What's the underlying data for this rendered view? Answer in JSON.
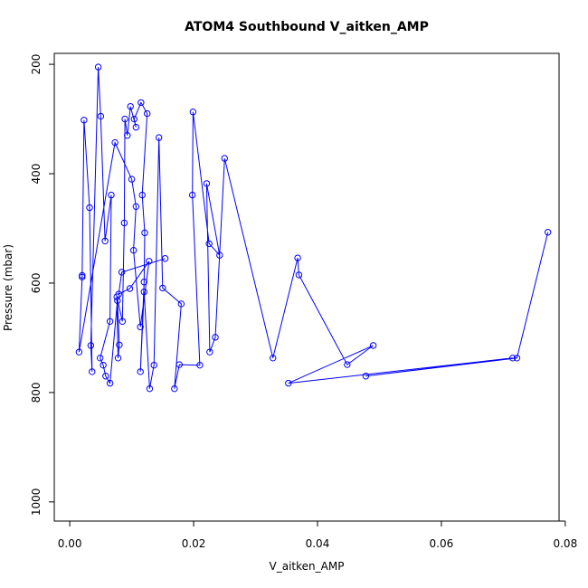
{
  "chart_data": {
    "type": "line",
    "title": "ATOM4 Southbound V_aitken_AMP",
    "xlabel": "V_aitken_AMP",
    "ylabel": "Pressure (mbar)",
    "xlim": [
      -0.0025,
      0.079
    ],
    "ylim": [
      1035,
      180
    ],
    "y_inverted": true,
    "x_ticks": [
      "0.00",
      "0.02",
      "0.04",
      "0.06",
      "0.08"
    ],
    "x_tick_values": [
      0.0,
      0.02,
      0.04,
      0.06,
      0.08
    ],
    "y_ticks": [
      "200",
      "400",
      "600",
      "800",
      "1000"
    ],
    "y_tick_values": [
      200,
      400,
      600,
      800,
      1000
    ],
    "series_color": "#0000ff",
    "marker": "open-circle",
    "series": [
      {
        "points": [
          [
            0.0772,
            507
          ],
          [
            0.0722,
            737
          ],
          [
            0.0478,
            770
          ],
          [
            0.0715,
            737
          ],
          [
            0.0353,
            783
          ],
          [
            0.049,
            714
          ],
          [
            0.0448,
            749
          ],
          [
            0.037,
            585
          ],
          [
            0.0368,
            554
          ],
          [
            0.0328,
            737
          ],
          [
            0.025,
            372
          ],
          [
            0.0235,
            699
          ],
          [
            0.0226,
            726
          ],
          [
            0.0221,
            418
          ],
          [
            0.0242,
            549
          ],
          [
            0.0225,
            528
          ],
          [
            0.0199,
            287
          ],
          [
            0.0198,
            439
          ],
          [
            0.021,
            750
          ],
          [
            0.0177,
            749
          ],
          [
            0.0169,
            793
          ],
          [
            0.018,
            638
          ],
          [
            0.015,
            609
          ],
          [
            0.0144,
            334
          ],
          [
            0.0136,
            750
          ],
          [
            0.0129,
            793
          ],
          [
            0.012,
            616
          ],
          [
            0.0114,
            762
          ],
          [
            0.012,
            598
          ],
          [
            0.0121,
            508
          ],
          [
            0.0117,
            439
          ],
          [
            0.0125,
            290
          ],
          [
            0.0115,
            270
          ],
          [
            0.0104,
            300
          ],
          [
            0.0107,
            315
          ],
          [
            0.0098,
            277
          ],
          [
            0.0093,
            330
          ],
          [
            0.0089,
            300
          ],
          [
            0.0088,
            490
          ],
          [
            0.0085,
            670
          ],
          [
            0.0076,
            625
          ],
          [
            0.0078,
            737
          ],
          [
            0.008,
            713
          ],
          [
            0.0077,
            632
          ],
          [
            0.0065,
            783
          ],
          [
            0.0058,
            770
          ],
          [
            0.0054,
            750
          ],
          [
            0.0049,
            737
          ],
          [
            0.0065,
            670
          ],
          [
            0.0067,
            439
          ],
          [
            0.0057,
            523
          ],
          [
            0.005,
            295
          ],
          [
            0.0046,
            205
          ],
          [
            0.0034,
            714
          ],
          [
            0.0036,
            762
          ],
          [
            0.0032,
            462
          ],
          [
            0.0023,
            302
          ],
          [
            0.002,
            586
          ],
          [
            0.002,
            589
          ],
          [
            0.0015,
            726
          ],
          [
            0.0073,
            343
          ],
          [
            0.01,
            410
          ],
          [
            0.0107,
            460
          ],
          [
            0.0103,
            540
          ],
          [
            0.0114,
            680
          ],
          [
            0.0128,
            560
          ],
          [
            0.0097,
            610
          ],
          [
            0.0079,
            620
          ],
          [
            0.0084,
            580
          ],
          [
            0.0154,
            555
          ]
        ]
      }
    ]
  }
}
